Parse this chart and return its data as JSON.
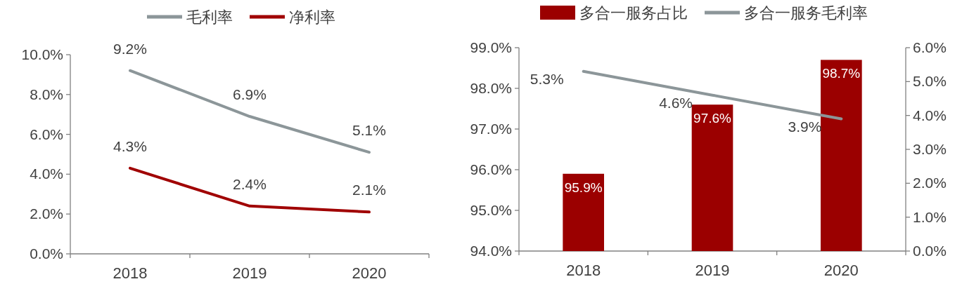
{
  "chart_data": [
    {
      "type": "line",
      "categories": [
        "2018",
        "2019",
        "2020"
      ],
      "legend": "top",
      "grid": false,
      "marker": "none",
      "line_style": "solid",
      "ylim": [
        0,
        10
      ],
      "yticks": [
        {
          "value": 0,
          "label": "0.0%"
        },
        {
          "value": 2,
          "label": "2.0%"
        },
        {
          "value": 4,
          "label": "4.0%"
        },
        {
          "value": 6,
          "label": "6.0%"
        },
        {
          "value": 8,
          "label": "8.0%"
        },
        {
          "value": 10,
          "label": "10.0%"
        }
      ],
      "series": [
        {
          "name": "毛利率",
          "color": "#8c9699",
          "values": [
            9.2,
            6.9,
            5.1
          ],
          "value_labels": [
            "9.2%",
            "6.9%",
            "5.1%"
          ]
        },
        {
          "name": "净利率",
          "color": "#a00000",
          "values": [
            4.3,
            2.4,
            2.1
          ],
          "value_labels": [
            "4.3%",
            "2.4%",
            "2.1%"
          ]
        }
      ]
    },
    {
      "type": "bar",
      "categories": [
        "2018",
        "2019",
        "2020"
      ],
      "legend": "top",
      "grid": false,
      "ylim": [
        94,
        99
      ],
      "yticks": [
        {
          "value": 94,
          "label": "94.0%"
        },
        {
          "value": 95,
          "label": "95.0%"
        },
        {
          "value": 96,
          "label": "96.0%"
        },
        {
          "value": 97,
          "label": "97.0%"
        },
        {
          "value": 98,
          "label": "98.0%"
        },
        {
          "value": 99,
          "label": "99.0%"
        }
      ],
      "y2lim": [
        0,
        6
      ],
      "y2ticks": [
        {
          "value": 0,
          "label": "0.0%"
        },
        {
          "value": 1,
          "label": "1.0%"
        },
        {
          "value": 2,
          "label": "2.0%"
        },
        {
          "value": 3,
          "label": "3.0%"
        },
        {
          "value": 4,
          "label": "4.0%"
        },
        {
          "value": 5,
          "label": "5.0%"
        },
        {
          "value": 6,
          "label": "6.0%"
        }
      ],
      "series": [
        {
          "name": "多合一服务占比",
          "color": "#9b0000",
          "values": [
            95.9,
            97.6,
            98.7
          ],
          "value_labels": [
            "95.9%",
            "97.6%",
            "98.7%"
          ]
        },
        {
          "name": "多合一服务毛利率",
          "type": "line",
          "axis": "y2",
          "color": "#8c9699",
          "values": [
            5.3,
            4.6,
            3.9
          ],
          "value_labels": [
            "5.3%",
            "4.6%",
            "3.9%"
          ]
        }
      ]
    }
  ]
}
